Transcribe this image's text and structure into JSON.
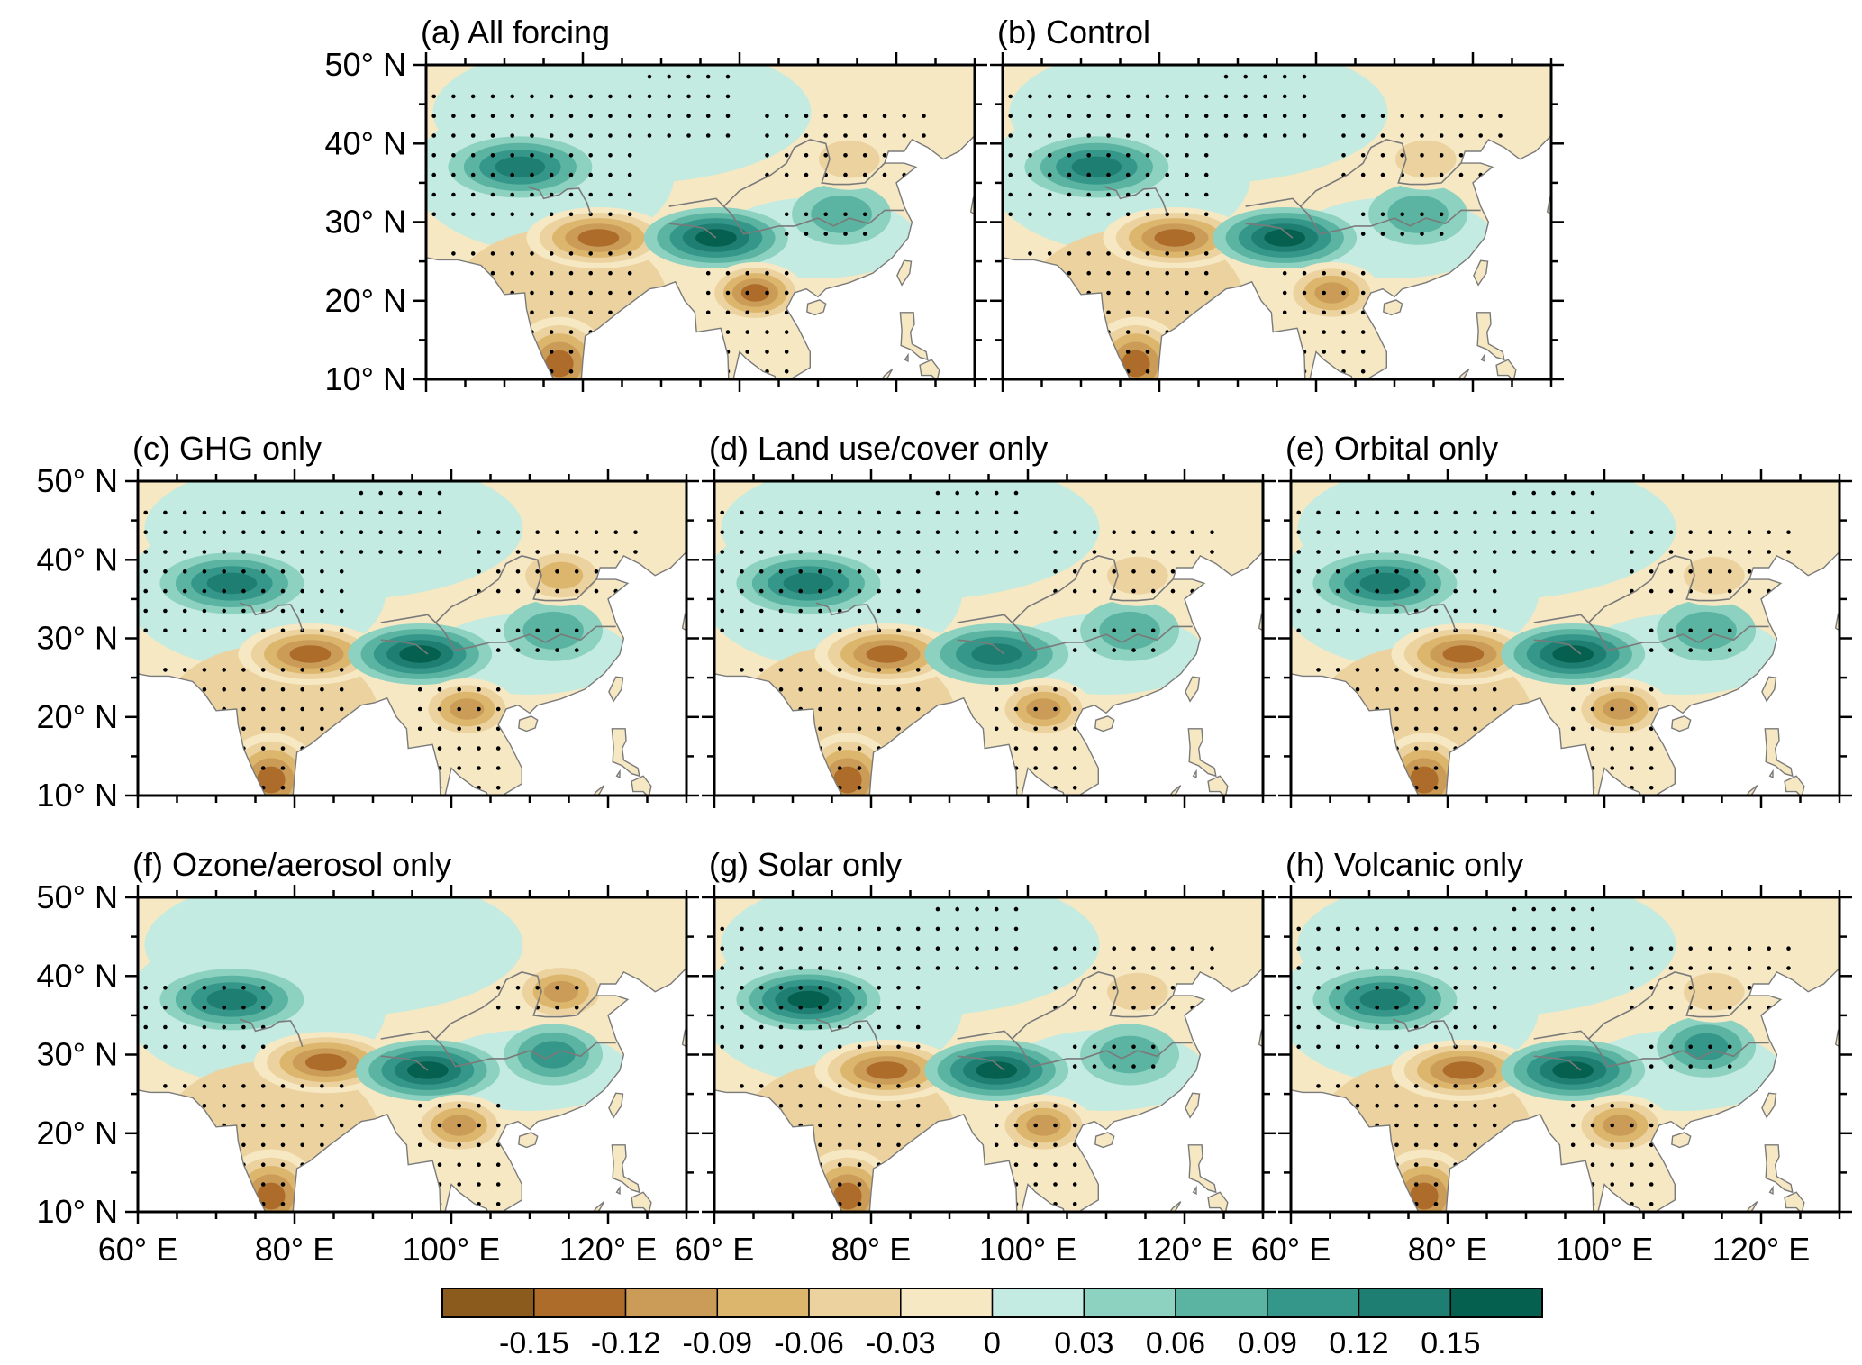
{
  "chart_data": {
    "type": "heatmap",
    "figure_kind": "multi-panel filled-contour map with stippling (significance dots)",
    "region": "South and East Asia",
    "x_axis": {
      "label": "",
      "range": [
        60,
        130
      ],
      "units": "degrees East",
      "major_ticks": [
        60,
        80,
        100,
        120
      ],
      "tick_labels": [
        "60° E",
        "80° E",
        "100° E",
        "120° E"
      ]
    },
    "y_axis": {
      "label": "",
      "range": [
        10,
        50
      ],
      "units": "degrees North",
      "major_ticks": [
        10,
        20,
        30,
        40,
        50
      ],
      "tick_labels": [
        "10° N",
        "20° N",
        "30° N",
        "40° N",
        "50° N"
      ]
    },
    "panels": [
      {
        "id": "a",
        "title": "(a) All forcing",
        "features": [
          {
            "name": "NW Tibet wet",
            "lon": 72,
            "lat": 37,
            "value": 0.12
          },
          {
            "name": "South Tibet dry",
            "lon": 82,
            "lat": 28,
            "value": -0.15
          },
          {
            "name": "Eastern Tibet wet",
            "lon": 97,
            "lat": 28,
            "value": 0.15
          },
          {
            "name": "Indochina dry",
            "lon": 102,
            "lat": 21,
            "value": -0.15
          },
          {
            "name": "South India dry",
            "lon": 77,
            "lat": 12,
            "value": -0.15
          },
          {
            "name": "Yangtze wet",
            "lon": 113,
            "lat": 31,
            "value": 0.06
          },
          {
            "name": "North China dry",
            "lon": 114,
            "lat": 38,
            "value": -0.06
          }
        ]
      },
      {
        "id": "b",
        "title": "(b) Control",
        "features": [
          {
            "name": "NW Tibet wet",
            "lon": 72,
            "lat": 37,
            "value": 0.12
          },
          {
            "name": "South Tibet dry",
            "lon": 82,
            "lat": 28,
            "value": -0.15
          },
          {
            "name": "Eastern Tibet wet",
            "lon": 96,
            "lat": 28,
            "value": 0.15
          },
          {
            "name": "Indochina dry",
            "lon": 102,
            "lat": 21,
            "value": -0.12
          },
          {
            "name": "South India dry",
            "lon": 77,
            "lat": 12,
            "value": -0.15
          },
          {
            "name": "Yangtze wet",
            "lon": 113,
            "lat": 31,
            "value": 0.06
          },
          {
            "name": "North China dry",
            "lon": 114,
            "lat": 38,
            "value": -0.06
          }
        ]
      },
      {
        "id": "c",
        "title": "(c) GHG only",
        "features": [
          {
            "name": "NW Tibet wet",
            "lon": 72,
            "lat": 37,
            "value": 0.12
          },
          {
            "name": "South Tibet dry",
            "lon": 82,
            "lat": 28,
            "value": -0.15
          },
          {
            "name": "Eastern Tibet wet",
            "lon": 96,
            "lat": 28,
            "value": 0.15
          },
          {
            "name": "Indochina dry",
            "lon": 102,
            "lat": 21,
            "value": -0.12
          },
          {
            "name": "South India dry",
            "lon": 77,
            "lat": 12,
            "value": -0.15
          },
          {
            "name": "Yangtze wet",
            "lon": 113,
            "lat": 31,
            "value": 0.06
          },
          {
            "name": "North China dry",
            "lon": 114,
            "lat": 38,
            "value": -0.09
          }
        ]
      },
      {
        "id": "d",
        "title": "(d) Land use/cover only",
        "features": [
          {
            "name": "NW Tibet wet",
            "lon": 72,
            "lat": 37,
            "value": 0.12
          },
          {
            "name": "South Tibet dry",
            "lon": 82,
            "lat": 28,
            "value": -0.15
          },
          {
            "name": "Eastern Tibet wet",
            "lon": 96,
            "lat": 28,
            "value": 0.12
          },
          {
            "name": "Indochina dry",
            "lon": 102,
            "lat": 21,
            "value": -0.12
          },
          {
            "name": "South India dry",
            "lon": 77,
            "lat": 12,
            "value": -0.15
          },
          {
            "name": "Yangtze wet",
            "lon": 113,
            "lat": 31,
            "value": 0.06
          },
          {
            "name": "North China dry",
            "lon": 114,
            "lat": 38,
            "value": -0.06
          }
        ]
      },
      {
        "id": "e",
        "title": "(e) Orbital only",
        "features": [
          {
            "name": "NW Tibet wet",
            "lon": 72,
            "lat": 37,
            "value": 0.12
          },
          {
            "name": "South Tibet dry",
            "lon": 82,
            "lat": 28,
            "value": -0.15
          },
          {
            "name": "Eastern Tibet wet",
            "lon": 96,
            "lat": 28,
            "value": 0.15
          },
          {
            "name": "Indochina dry",
            "lon": 102,
            "lat": 21,
            "value": -0.12
          },
          {
            "name": "South India dry",
            "lon": 77,
            "lat": 12,
            "value": -0.15
          },
          {
            "name": "Yangtze wet",
            "lon": 113,
            "lat": 31,
            "value": 0.06
          },
          {
            "name": "North China dry",
            "lon": 114,
            "lat": 38,
            "value": -0.06
          }
        ]
      },
      {
        "id": "f",
        "title": "(f) Ozone/aerosol only",
        "features": [
          {
            "name": "NW Tibet wet",
            "lon": 72,
            "lat": 37,
            "value": 0.12
          },
          {
            "name": "South Tibet dry",
            "lon": 84,
            "lat": 29,
            "value": -0.15
          },
          {
            "name": "Eastern Tibet wet",
            "lon": 97,
            "lat": 28,
            "value": 0.15
          },
          {
            "name": "Indochina dry",
            "lon": 101,
            "lat": 21,
            "value": -0.12
          },
          {
            "name": "South India dry",
            "lon": 77,
            "lat": 12,
            "value": -0.15
          },
          {
            "name": "Yangtze wet",
            "lon": 113,
            "lat": 30,
            "value": 0.09
          },
          {
            "name": "North China dry",
            "lon": 114,
            "lat": 38,
            "value": -0.12
          }
        ]
      },
      {
        "id": "g",
        "title": "(g) Solar only",
        "features": [
          {
            "name": "NW Tibet wet",
            "lon": 72,
            "lat": 37,
            "value": 0.15
          },
          {
            "name": "South Tibet dry",
            "lon": 82,
            "lat": 28,
            "value": -0.15
          },
          {
            "name": "Eastern Tibet wet",
            "lon": 96,
            "lat": 28,
            "value": 0.15
          },
          {
            "name": "Indochina dry",
            "lon": 102,
            "lat": 21,
            "value": -0.12
          },
          {
            "name": "South India dry",
            "lon": 77,
            "lat": 12,
            "value": -0.15
          },
          {
            "name": "Yangtze wet",
            "lon": 113,
            "lat": 30,
            "value": 0.06
          },
          {
            "name": "North China dry",
            "lon": 114,
            "lat": 38,
            "value": -0.06
          }
        ]
      },
      {
        "id": "h",
        "title": "(h) Volcanic only",
        "features": [
          {
            "name": "NW Tibet wet",
            "lon": 72,
            "lat": 37,
            "value": 0.12
          },
          {
            "name": "South Tibet dry",
            "lon": 82,
            "lat": 28,
            "value": -0.15
          },
          {
            "name": "Eastern Tibet wet",
            "lon": 96,
            "lat": 28,
            "value": 0.15
          },
          {
            "name": "Indochina dry",
            "lon": 102,
            "lat": 21,
            "value": -0.12
          },
          {
            "name": "South India dry",
            "lon": 77,
            "lat": 12,
            "value": -0.15
          },
          {
            "name": "Yangtze wet",
            "lon": 113,
            "lat": 31,
            "value": 0.09
          },
          {
            "name": "North China dry",
            "lon": 114,
            "lat": 38,
            "value": -0.06
          }
        ]
      }
    ],
    "colorbar": {
      "levels": [
        -0.15,
        -0.12,
        -0.09,
        -0.06,
        -0.03,
        0,
        0.03,
        0.06,
        0.09,
        0.12,
        0.15
      ],
      "labels": [
        "-0.15",
        "-0.12",
        "-0.09",
        "-0.06",
        "-0.03",
        "0",
        "0.03",
        "0.06",
        "0.09",
        "0.12",
        "0.15"
      ],
      "colors": [
        "#8a5b1c",
        "#ad6c29",
        "#cb9c58",
        "#ddb66e",
        "#ebd29f",
        "#f6e8c3",
        "#c3ebe1",
        "#8dd1c0",
        "#5ab4a1",
        "#35968a",
        "#1f7e72",
        "#06604f"
      ]
    }
  }
}
